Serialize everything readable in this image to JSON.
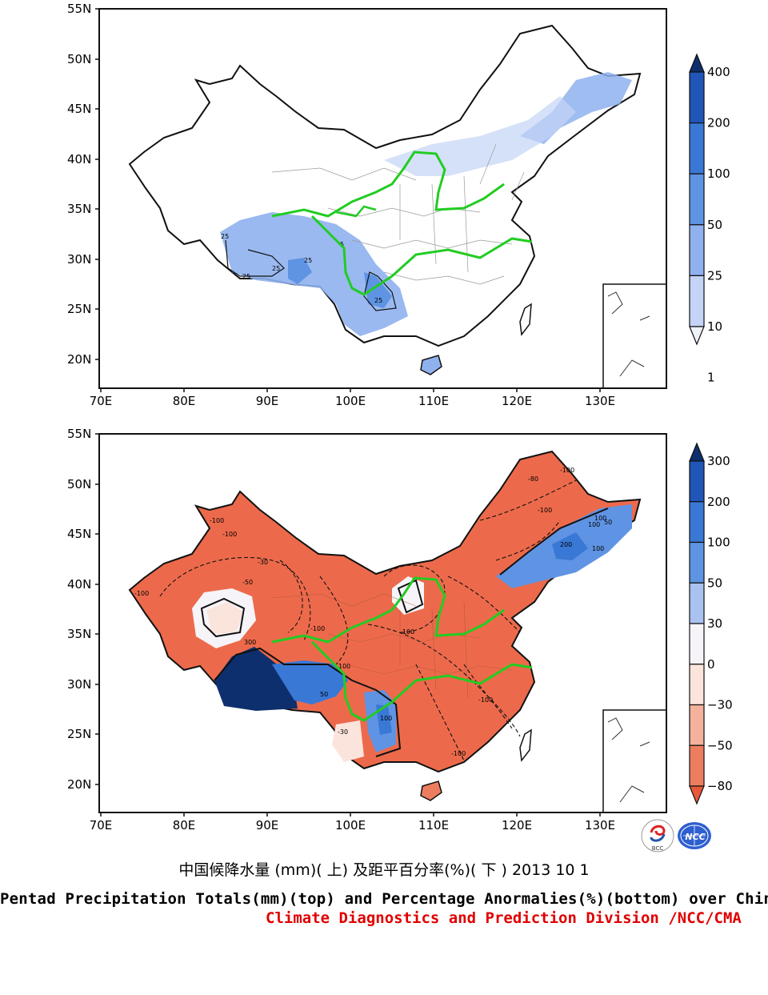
{
  "top_panel": {
    "lat_labels": [
      "55N",
      "50N",
      "45N",
      "40N",
      "35N",
      "30N",
      "25N",
      "20N"
    ],
    "lon_labels": [
      "70E",
      "80E",
      "90E",
      "100E",
      "110E",
      "120E",
      "130E"
    ],
    "colorbar": {
      "levels": [
        "400",
        "200",
        "100",
        "50",
        "25",
        "10",
        "1"
      ],
      "colors": [
        "#0d2f6e",
        "#1f56b8",
        "#3a78d6",
        "#5f93e3",
        "#8fb1ee",
        "#c3d4f6",
        "#eef2fb"
      ]
    },
    "contour_labels": [
      "25",
      "25",
      "25",
      "25",
      "5",
      "25"
    ]
  },
  "bottom_panel": {
    "lat_labels": [
      "55N",
      "50N",
      "45N",
      "40N",
      "35N",
      "30N",
      "25N",
      "20N"
    ],
    "lon_labels": [
      "70E",
      "80E",
      "90E",
      "100E",
      "110E",
      "120E",
      "130E"
    ],
    "colorbar": {
      "levels": [
        "300",
        "200",
        "100",
        "50",
        "30",
        "0",
        "−30",
        "−50",
        "−80"
      ],
      "colors": [
        "#0d2f6e",
        "#1f56b8",
        "#3a78d6",
        "#5f93e3",
        "#a9c2f0",
        "#f6f4f8",
        "#fbe4dc",
        "#f4b19c",
        "#ec7d5f",
        "#e8573a"
      ]
    },
    "contour_labels": [
      "-100",
      "-100",
      "-100",
      "-80",
      "-100",
      "100",
      "50",
      "200",
      "100",
      "-100",
      "-30",
      "-50",
      "100",
      "-100",
      "-100",
      "300",
      "100",
      "50",
      "100",
      "-30",
      "-100",
      "-100"
    ]
  },
  "caption": {
    "chinese": "中国候降水量 (mm)( 上) 及距平百分率(%)( 下 ) 2013 10 1",
    "english": "Pentad Precipitation Totals(mm)(top) and Percentage Anormalies(%)(bottom) over China",
    "organization": "Climate Diagnostics and Prediction Division /NCC/CMA"
  },
  "logos": {
    "left": "BCC",
    "right": "NCC"
  },
  "colors": {
    "river": "#22cc22",
    "org_text": "#e00000"
  }
}
